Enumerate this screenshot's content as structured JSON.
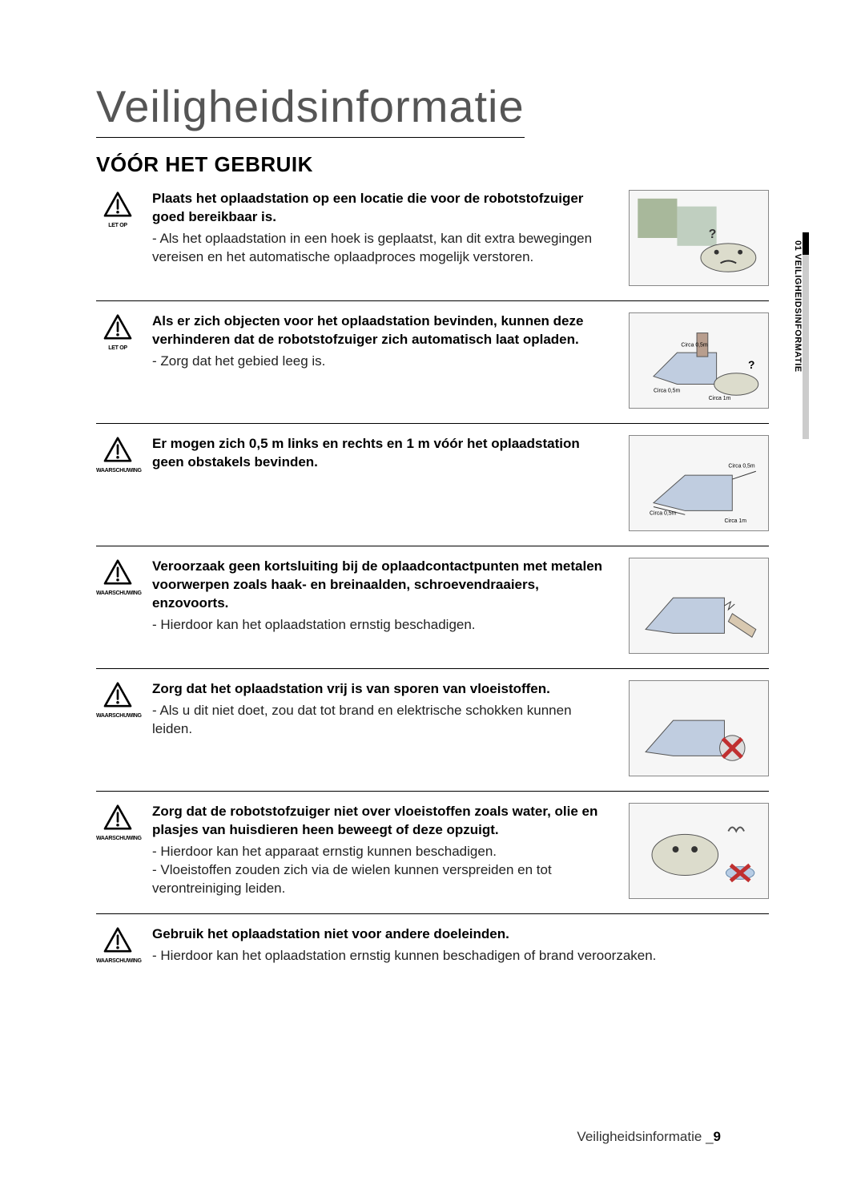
{
  "page": {
    "title": "Veiligheidsinformatie",
    "section": "VÓÓR HET GEBRUIK",
    "side_tab": "01 VEILIGHEIDSINFORMATIE",
    "footer_label": "Veiligheidsinformatie _",
    "footer_page": "9"
  },
  "labels": {
    "caution": "LET OP",
    "warning": "WAARSCHUWING"
  },
  "illus_labels": {
    "circa05a": "Circa 0,5m",
    "circa05b": "Circa 0,5m",
    "circa1": "Circa 1m"
  },
  "items": [
    {
      "level": "caution",
      "bold": "Plaats het oplaadstation op een locatie die voor de robotstofzuiger goed bereikbaar is.",
      "body": "- Als het oplaadstation in een hoek is geplaatst, kan dit extra bewegingen vereisen en het automatische oplaadproces mogelijk verstoren.",
      "has_image": true
    },
    {
      "level": "caution",
      "bold": "Als er zich objecten voor het oplaadstation bevinden, kunnen deze verhinderen dat de robotstofzuiger zich automatisch laat opladen.",
      "body": "- Zorg dat het gebied leeg is.",
      "has_image": true
    },
    {
      "level": "warning",
      "bold": "Er mogen zich 0,5 m links en rechts en 1 m vóór het oplaadstation geen obstakels bevinden.",
      "body": "",
      "has_image": true
    },
    {
      "level": "warning",
      "bold": "Veroorzaak geen kortsluiting bij de oplaadcontactpunten met metalen voorwerpen zoals haak- en breinaalden, schroevendraaiers, enzovoorts.",
      "body": "- Hierdoor kan het oplaadstation ernstig beschadigen.",
      "has_image": true
    },
    {
      "level": "warning",
      "bold": "Zorg dat het oplaadstation vrij is van sporen van vloeistoffen.",
      "body": "- Als u dit niet doet, zou dat tot brand en elektrische schokken kunnen leiden.",
      "has_image": true
    },
    {
      "level": "warning",
      "bold": "Zorg dat de robotstofzuiger niet over vloeistoffen zoals water, olie en plasjes van huisdieren heen beweegt of deze opzuigt.",
      "body": "- Hierdoor kan het apparaat ernstig kunnen beschadigen.\n- Vloeistoffen zouden zich via de wielen kunnen verspreiden en tot verontreiniging leiden.",
      "has_image": true
    },
    {
      "level": "warning",
      "bold": "Gebruik het oplaadstation niet voor andere doeleinden.",
      "body": "- Hierdoor kan het oplaadstation ernstig kunnen beschadigen of brand veroorzaken.",
      "has_image": false
    }
  ]
}
